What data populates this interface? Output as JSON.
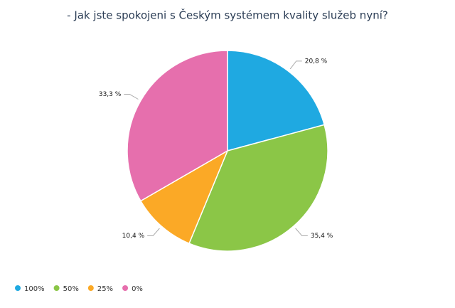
{
  "chart_data": {
    "type": "pie",
    "title": "- Jak jste spokojeni s Českým systémem kvality služeb nyní?",
    "categories": [
      "100%",
      "50%",
      "25%",
      "0%"
    ],
    "values": [
      20.8,
      35.4,
      10.4,
      33.3
    ],
    "value_labels": [
      "20,8 %",
      "35,4 %",
      "10,4 %",
      "33,3 %"
    ],
    "colors": [
      "#1fa9e1",
      "#8bc647",
      "#fba926",
      "#e66fad"
    ],
    "legend": "bottom-left"
  }
}
